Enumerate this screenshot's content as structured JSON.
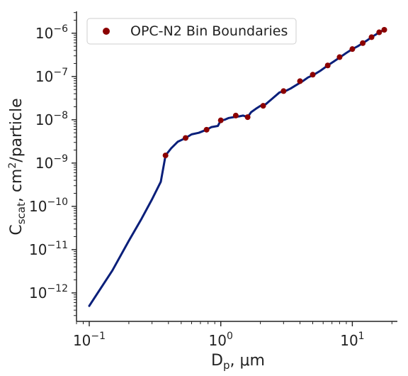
{
  "chart_data": {
    "type": "line",
    "xscale": "log",
    "yscale": "log",
    "xlim": [
      0.08,
      22
    ],
    "ylim": [
      2.2e-13,
      3.2e-06
    ],
    "xticks": [
      {
        "value": 0.1,
        "base": "10",
        "exp": "−1"
      },
      {
        "value": 1,
        "base": "10",
        "exp": "0"
      },
      {
        "value": 10,
        "base": "10",
        "exp": "1"
      }
    ],
    "yticks": [
      {
        "value": 1e-12,
        "base": "10",
        "exp": "−12"
      },
      {
        "value": 1e-11,
        "base": "10",
        "exp": "−11"
      },
      {
        "value": 1e-10,
        "base": "10",
        "exp": "−10"
      },
      {
        "value": 1e-09,
        "base": "10",
        "exp": "−9"
      },
      {
        "value": 1e-08,
        "base": "10",
        "exp": "−8"
      },
      {
        "value": 1e-07,
        "base": "10",
        "exp": "−7"
      },
      {
        "value": 1e-06,
        "base": "10",
        "exp": "−6"
      }
    ],
    "xlabel": {
      "main": "D",
      "sub": "p",
      "rest": ", μm"
    },
    "ylabel": {
      "main": "C",
      "sub": "scat",
      "rest1": ", cm",
      "sup": "2",
      "rest2": "/particle"
    },
    "legend": {
      "position": "top-left",
      "entries": [
        "OPC-N2 Bin Boundaries"
      ]
    },
    "grid": false,
    "line": {
      "color": "#0a1f7a",
      "x": [
        0.1,
        0.15,
        0.2,
        0.25,
        0.3,
        0.35,
        0.38,
        0.42,
        0.47,
        0.54,
        0.6,
        0.68,
        0.78,
        0.85,
        0.95,
        1.0,
        1.07,
        1.15,
        1.25,
        1.38,
        1.48,
        1.6,
        1.7,
        1.85,
        2.0,
        2.2,
        2.5,
        2.8,
        3.1,
        3.4,
        3.8,
        4.2,
        4.6,
        5.1,
        5.7,
        6.5,
        7.2,
        8.1,
        9.0,
        10.0,
        11.0,
        12.0,
        13.0,
        14.0,
        15.0,
        16.0,
        17.0,
        17.5
      ],
      "y": [
        5e-13,
        3.3e-12,
        1.6e-11,
        5.2e-11,
        1.45e-10,
        3.7e-10,
        1.5e-09,
        2.2e-09,
        3.1e-09,
        3.8e-09,
        4.6e-09,
        5e-09,
        5.9e-09,
        6.8e-09,
        7.2e-09,
        9.7e-09,
        1e-08,
        1.1e-08,
        1.15e-08,
        1.2e-08,
        1.25e-08,
        1.15e-08,
        1.5e-08,
        1.8e-08,
        2.1e-08,
        2.3e-08,
        3.2e-08,
        4.3e-08,
        4.6e-08,
        5.3e-08,
        6.5e-08,
        7.8e-08,
        9.5e-08,
        1.1e-07,
        1.35e-07,
        1.8e-07,
        2.2e-07,
        2.8e-07,
        3.5e-07,
        4.3e-07,
        5e-07,
        5.9e-07,
        6.9e-07,
        8.1e-07,
        9.2e-07,
        1.05e-06,
        1.15e-06,
        1.2e-06
      ]
    },
    "points": {
      "name": "OPC-N2 Bin Boundaries",
      "color": "#8b0000",
      "x": [
        0.38,
        0.54,
        0.78,
        1.0,
        1.3,
        1.6,
        2.1,
        3.0,
        4.0,
        5.0,
        6.5,
        8.0,
        10.0,
        12.0,
        14.0,
        16.0,
        17.5
      ],
      "y": [
        1.5e-09,
        3.8e-09,
        5.9e-09,
        9.7e-09,
        1.25e-08,
        1.15e-08,
        2.1e-08,
        4.6e-08,
        7.8e-08,
        1.1e-07,
        1.8e-07,
        2.8e-07,
        4.3e-07,
        5.9e-07,
        8.1e-07,
        1.05e-06,
        1.2e-06
      ]
    }
  }
}
